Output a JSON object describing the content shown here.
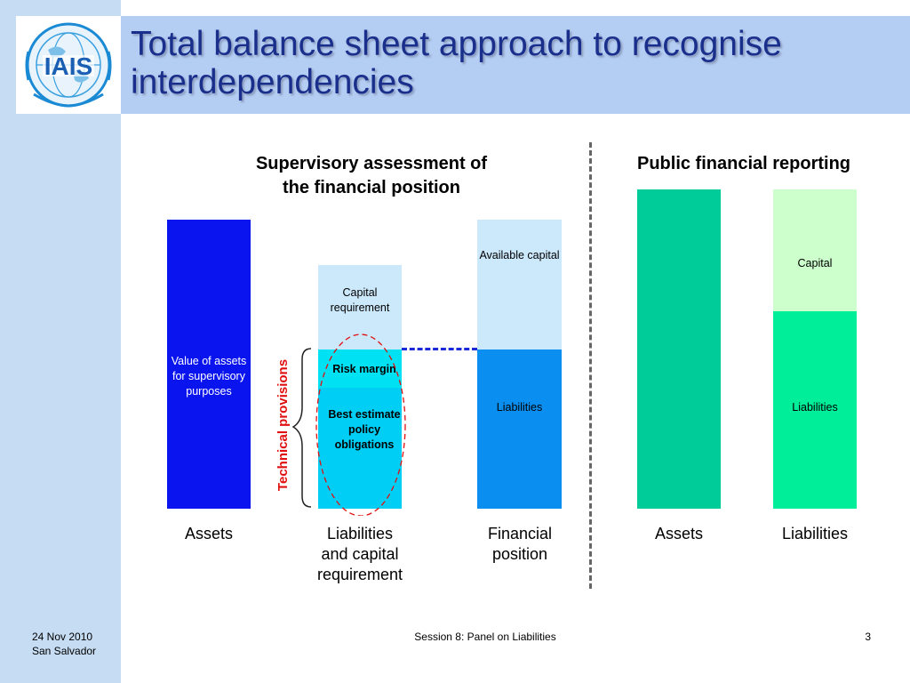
{
  "slide": {
    "title": "Total balance sheet approach to recognise interdependencies",
    "logo_text": "IAIS",
    "page_number": "3"
  },
  "left_section": {
    "heading_line1": "Supervisory assessment of",
    "heading_line2": "the financial position",
    "bars": {
      "assets": {
        "segment": "Value of assets for supervisory purposes",
        "label": "Assets"
      },
      "liabilities_capital": {
        "capital_requirement": "Capital requirement",
        "risk_margin": "Risk margin",
        "best_estimate": "Best estimate policy obligations",
        "label_line1": "Liabilities",
        "label_line2": "and capital",
        "label_line3": "requirement"
      },
      "financial_position": {
        "available_capital": "Available capital",
        "liabilities": "Liabilities",
        "label_line1": "Financial",
        "label_line2": "position"
      }
    },
    "technical_provisions_label": "Technical provisions"
  },
  "right_section": {
    "heading": "Public financial reporting",
    "bars": {
      "assets": {
        "label": "Assets"
      },
      "liabilities": {
        "capital": "Capital",
        "liabilities": "Liabilities",
        "label": "Liabilities"
      }
    }
  },
  "footer": {
    "date": "24 Nov 2010",
    "location": "San Salvador",
    "session": "Session 8: Panel on Liabilities"
  },
  "colors": {
    "assets_blue": "#0a14ee",
    "capital_light": "#cce8fb",
    "risk_margin_cyan": "#00e2f4",
    "best_estimate_cyan": "#00cef5",
    "liabilities_blue": "#0a8ef0",
    "public_assets_green": "#00cc99",
    "public_liabilities_green": "#00ee99",
    "public_capital_green": "#ccffcc",
    "technical_provisions_red": "#e01010",
    "title_blue": "#1a2f8c"
  }
}
